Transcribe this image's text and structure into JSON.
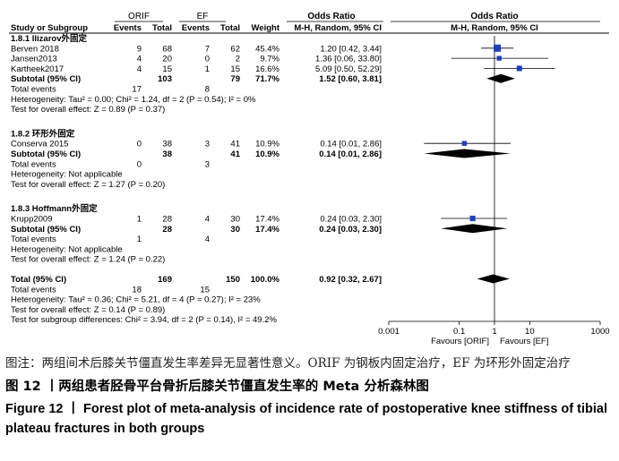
{
  "header": {
    "group1": "ORIF",
    "group2": "EF",
    "or_left": "Odds Ratio",
    "or_right": "Odds Ratio",
    "cols": {
      "study": "Study or Subgroup",
      "events1": "Events",
      "total1": "Total",
      "events2": "Events",
      "total2": "Total",
      "weight": "Weight",
      "method_left": "M-H, Random, 95% CI",
      "method_right": "M-H, Random, 95% CI"
    }
  },
  "chart_data": {
    "type": "forest",
    "scale": "log",
    "xlim": [
      0.001,
      1000
    ],
    "x_ticks": [
      "0.001",
      "0.1",
      "1",
      "10",
      "1000"
    ],
    "favours_left": "Favours [ORIF]",
    "favours_right": "Favours [EF]",
    "subgroups": [
      {
        "title": "1.8.1 Ilizarov外固定",
        "studies": [
          {
            "name": "Berven 2018",
            "e1": "9",
            "t1": "68",
            "e2": "7",
            "t2": "62",
            "weight": "45.4%",
            "ci_text": "1.20 [0.42, 3.44]",
            "or": 1.2,
            "lo": 0.42,
            "hi": 3.44
          },
          {
            "name": "Jansen2013",
            "e1": "4",
            "t1": "20",
            "e2": "0",
            "t2": "2",
            "weight": "9.7%",
            "ci_text": "1.36 [0.06, 33.80]",
            "or": 1.36,
            "lo": 0.06,
            "hi": 33.8
          },
          {
            "name": "Kartheek2017",
            "e1": "4",
            "t1": "15",
            "e2": "1",
            "t2": "15",
            "weight": "16.6%",
            "ci_text": "5.09 [0.50, 52.29]",
            "or": 5.09,
            "lo": 0.5,
            "hi": 52.29
          }
        ],
        "subtotal": {
          "label": "Subtotal (95% CI)",
          "t1": "103",
          "t2": "79",
          "weight": "71.7%",
          "ci_text": "1.52 [0.60, 3.81]",
          "or": 1.52,
          "lo": 0.6,
          "hi": 3.81
        },
        "total_events": {
          "label": "Total events",
          "e1": "17",
          "e2": "8"
        },
        "heterogeneity": "Heterogeneity: Tau² = 0.00; Chi² = 1.24, df = 2 (P = 0.54); I² = 0%",
        "overall": "Test for overall effect: Z = 0.89 (P = 0.37)"
      },
      {
        "title": "1.8.2 环形外固定",
        "studies": [
          {
            "name": "Conserva 2015",
            "e1": "0",
            "t1": "38",
            "e2": "3",
            "t2": "41",
            "weight": "10.9%",
            "ci_text": "0.14 [0.01, 2.86]",
            "or": 0.14,
            "lo": 0.01,
            "hi": 2.86
          }
        ],
        "subtotal": {
          "label": "Subtotal (95% CI)",
          "t1": "38",
          "t2": "41",
          "weight": "10.9%",
          "ci_text": "0.14 [0.01, 2.86]",
          "or": 0.14,
          "lo": 0.01,
          "hi": 2.86
        },
        "total_events": {
          "label": "Total events",
          "e1": "0",
          "e2": "3"
        },
        "heterogeneity": "Heterogeneity: Not applicable",
        "overall": "Test for overall effect: Z = 1.27 (P = 0.20)"
      },
      {
        "title": "1.8.3 Hoffmann外固定",
        "studies": [
          {
            "name": "Krupp2009",
            "e1": "1",
            "t1": "28",
            "e2": "4",
            "t2": "30",
            "weight": "17.4%",
            "ci_text": "0.24 [0.03, 2.30]",
            "or": 0.24,
            "lo": 0.03,
            "hi": 2.3
          }
        ],
        "subtotal": {
          "label": "Subtotal (95% CI)",
          "t1": "28",
          "t2": "30",
          "weight": "17.4%",
          "ci_text": "0.24 [0.03, 2.30]",
          "or": 0.24,
          "lo": 0.03,
          "hi": 2.3
        },
        "total_events": {
          "label": "Total events",
          "e1": "1",
          "e2": "4"
        },
        "heterogeneity": "Heterogeneity: Not applicable",
        "overall": "Test for overall effect: Z = 1.24 (P = 0.22)"
      }
    ],
    "total": {
      "label": "Total (95% CI)",
      "t1": "169",
      "t2": "150",
      "weight": "100.0%",
      "ci_text": "0.92 [0.32, 2.67]",
      "or": 0.92,
      "lo": 0.32,
      "hi": 2.67
    },
    "total_events": {
      "label": "Total events",
      "e1": "18",
      "e2": "15"
    },
    "heterogeneity": "Heterogeneity: Tau² = 0.36; Chi² = 5.21, df = 4 (P = 0.27); I² = 23%",
    "overall": "Test for overall effect: Z = 0.14 (P = 0.89)",
    "subgroup_diff": "Test for subgroup differences: Chi² = 3.94, df = 2 (P = 0.14), I² = 49.2%",
    "colors": {
      "square": "#1f3fbf",
      "diamond": "#000000"
    }
  },
  "caption": {
    "note": "图注：两组间术后膝关节僵直发生率差异无显著性意义。ORIF 为钢板内固定治疗，EF 为环形外固定治疗",
    "title_cn": "图 12 丨两组患者胫骨平台骨折后膝关节僵直发生率的 Meta 分析森林图",
    "title_en": "Figure 12  丨  Forest plot of meta-analysis of incidence rate of postoperative knee stiffness of tibial plateau fractures in both groups"
  }
}
